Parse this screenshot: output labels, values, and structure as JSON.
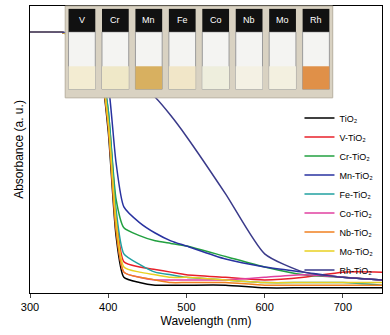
{
  "chart_data": {
    "type": "line",
    "x_label": "Wavelength (nm)",
    "y_label": "Absorbance (a. u.)",
    "x": [
      300,
      320,
      340,
      360,
      380,
      390,
      400,
      410,
      420,
      440,
      460,
      480,
      500,
      550,
      600,
      650,
      700,
      750
    ],
    "series": [
      {
        "name": "TiO₂",
        "color": "#000000",
        "values": [
          1.0,
          1.0,
          1.0,
          0.97,
          0.92,
          0.86,
          0.62,
          0.22,
          0.06,
          0.04,
          0.03,
          0.03,
          0.03,
          0.03,
          0.02,
          0.02,
          0.02,
          0.02
        ]
      },
      {
        "name": "V-TiO₂",
        "color": "#e8202a",
        "values": [
          1.0,
          1.0,
          1.0,
          0.97,
          0.93,
          0.88,
          0.68,
          0.3,
          0.12,
          0.1,
          0.09,
          0.08,
          0.07,
          0.06,
          0.05,
          0.06,
          0.08,
          0.08
        ]
      },
      {
        "name": "Cr-TiO₂",
        "color": "#22a040",
        "values": [
          1.0,
          1.0,
          1.0,
          0.97,
          0.93,
          0.88,
          0.7,
          0.36,
          0.25,
          0.22,
          0.2,
          0.19,
          0.18,
          0.14,
          0.1,
          0.07,
          0.06,
          0.05
        ]
      },
      {
        "name": "Mn-TiO₂",
        "color": "#2832a0",
        "values": [
          1.0,
          1.0,
          1.0,
          0.98,
          0.95,
          0.91,
          0.8,
          0.5,
          0.33,
          0.27,
          0.23,
          0.2,
          0.18,
          0.13,
          0.1,
          0.08,
          0.06,
          0.05
        ]
      },
      {
        "name": "Fe-TiO₂",
        "color": "#20a0a0",
        "values": [
          1.0,
          1.0,
          1.0,
          0.97,
          0.93,
          0.88,
          0.7,
          0.32,
          0.15,
          0.11,
          0.08,
          0.07,
          0.06,
          0.05,
          0.04,
          0.04,
          0.04,
          0.03
        ]
      },
      {
        "name": "Co-TiO₂",
        "color": "#e040a0",
        "values": [
          1.0,
          1.0,
          1.0,
          0.97,
          0.92,
          0.87,
          0.65,
          0.26,
          0.08,
          0.06,
          0.05,
          0.05,
          0.05,
          0.05,
          0.06,
          0.07,
          0.06,
          0.05
        ]
      },
      {
        "name": "Nb-TiO₂",
        "color": "#f08020",
        "values": [
          1.0,
          1.0,
          1.0,
          0.97,
          0.92,
          0.86,
          0.64,
          0.24,
          0.08,
          0.06,
          0.05,
          0.04,
          0.04,
          0.04,
          0.03,
          0.03,
          0.03,
          0.03
        ]
      },
      {
        "name": "Mo-TiO₂",
        "color": "#e8d020",
        "values": [
          1.0,
          1.0,
          1.0,
          0.97,
          0.93,
          0.87,
          0.66,
          0.28,
          0.1,
          0.08,
          0.07,
          0.06,
          0.06,
          0.05,
          0.04,
          0.04,
          0.04,
          0.04
        ]
      },
      {
        "name": "Rh-TiO₂",
        "color": "#3a3a8a",
        "values": [
          1.0,
          1.0,
          1.0,
          0.99,
          0.98,
          0.96,
          0.92,
          0.87,
          0.84,
          0.8,
          0.75,
          0.68,
          0.6,
          0.38,
          0.15,
          0.08,
          0.06,
          0.05
        ]
      }
    ],
    "xlim": [
      300,
      750
    ],
    "xticks": [
      300,
      400,
      500,
      600,
      700
    ],
    "ylim": [
      0,
      1.1
    ],
    "yticks": [],
    "tick_labels": "x",
    "grid": false,
    "legend": "right",
    "annotations": [
      "V",
      "Cr",
      "Mn",
      "Fe",
      "Co",
      "Nb",
      "Mo",
      "Rh"
    ]
  }
}
